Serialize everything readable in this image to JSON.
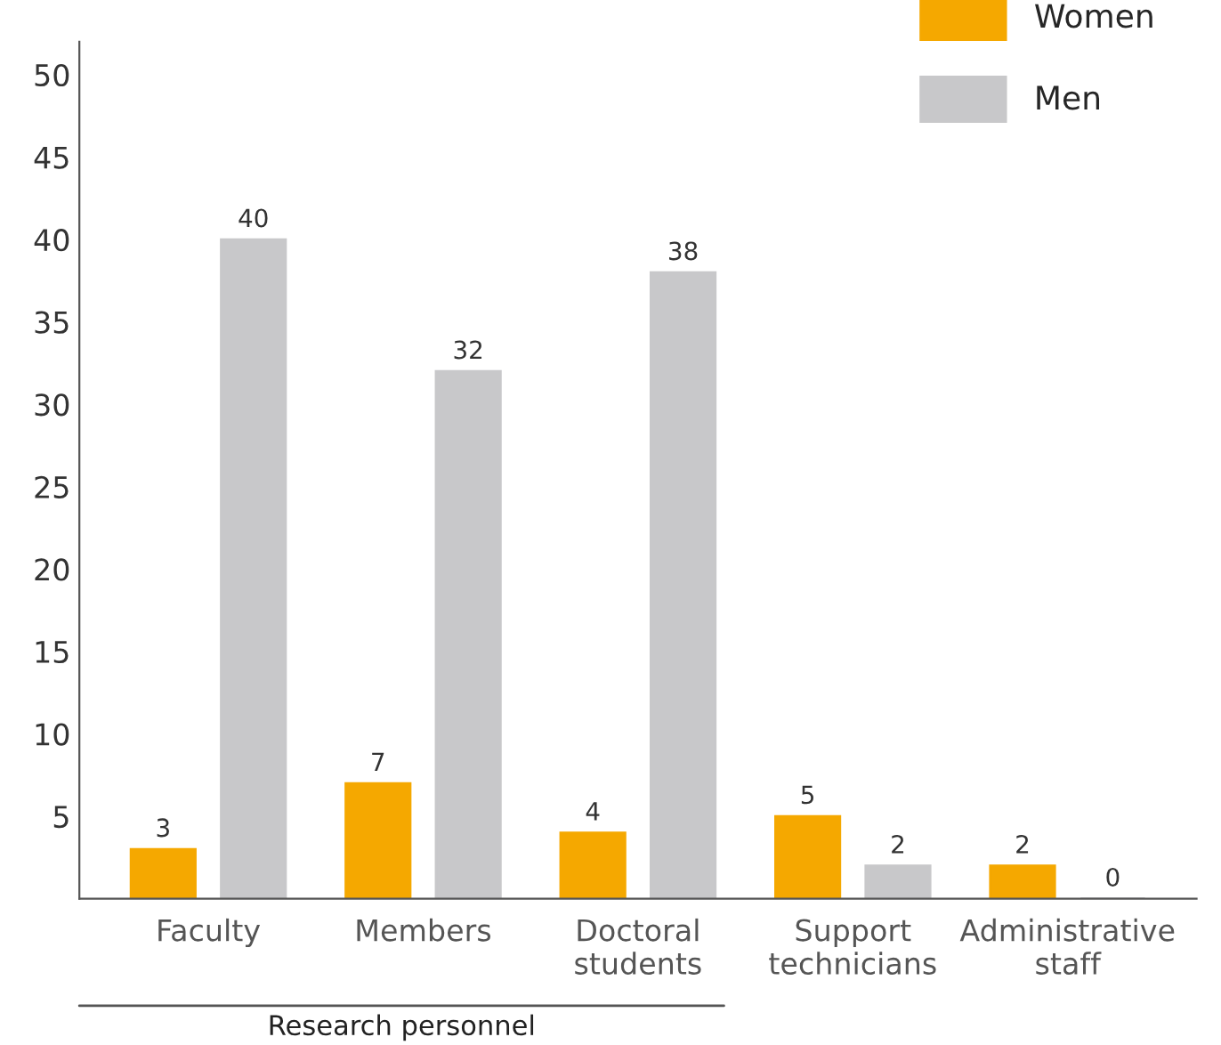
{
  "chart_data": {
    "type": "bar",
    "categories": [
      "Faculty",
      "Members",
      "Doctoral\nstudents",
      "Support\ntechnicians",
      "Administrative\nstaff"
    ],
    "series": [
      {
        "name": "Women",
        "color": "#f5a800",
        "values": [
          3,
          7,
          4,
          5,
          2
        ]
      },
      {
        "name": "Men",
        "color": "#c8c8ca",
        "values": [
          40,
          32,
          38,
          2,
          0
        ]
      }
    ],
    "ylim": [
      0,
      52
    ],
    "yticks": [
      5,
      10,
      15,
      20,
      25,
      30,
      35,
      40,
      45,
      50
    ],
    "data_labels": true,
    "grid": false,
    "legend": "top right",
    "annotations": [
      "Research personnel"
    ]
  }
}
